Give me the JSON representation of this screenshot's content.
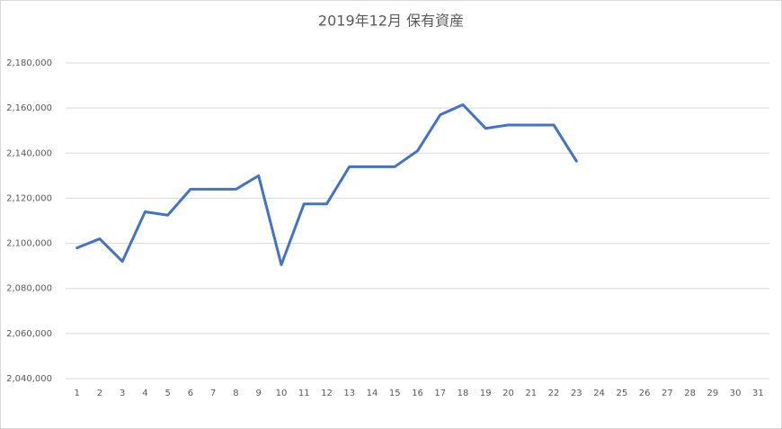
{
  "chart_data": {
    "type": "line",
    "title": "2019年12月 保有資産",
    "categories": [
      "1",
      "2",
      "3",
      "4",
      "5",
      "6",
      "7",
      "8",
      "9",
      "10",
      "11",
      "12",
      "13",
      "14",
      "15",
      "16",
      "17",
      "18",
      "19",
      "20",
      "21",
      "22",
      "23",
      "24",
      "25",
      "26",
      "27",
      "28",
      "29",
      "30",
      "31"
    ],
    "series": [
      {
        "name": "保有資産",
        "color": "#4472c4",
        "values": [
          2098000,
          2102000,
          2092000,
          2114000,
          2112500,
          2124000,
          2124000,
          2124000,
          2130000,
          2090500,
          2117500,
          2117500,
          2134000,
          2134000,
          2134000,
          2141000,
          2157000,
          2161500,
          2151000,
          2152500,
          2152500,
          2152500,
          2136500,
          null,
          null,
          null,
          null,
          null,
          null,
          null,
          null
        ]
      }
    ],
    "ylim": [
      2040000,
      2180000
    ],
    "yticks": [
      {
        "value": 2040000,
        "label": "2,040,000"
      },
      {
        "value": 2060000,
        "label": "2,060,000"
      },
      {
        "value": 2080000,
        "label": "2,080,000"
      },
      {
        "value": 2100000,
        "label": "2,100,000"
      },
      {
        "value": 2120000,
        "label": "2,120,000"
      },
      {
        "value": 2140000,
        "label": "2,140,000"
      },
      {
        "value": 2160000,
        "label": "2,160,000"
      },
      {
        "value": 2180000,
        "label": "2,180,000"
      }
    ],
    "grid": true
  }
}
